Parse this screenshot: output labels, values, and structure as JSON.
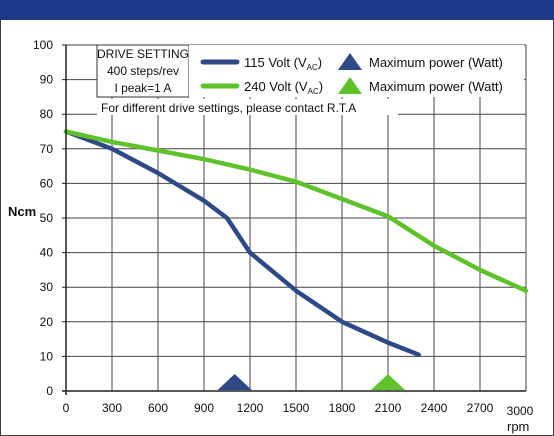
{
  "chart_data": {
    "type": "line",
    "title": "",
    "xlabel": "rpm",
    "ylabel": "Ncm",
    "xlim": [
      0,
      3000
    ],
    "ylim": [
      0,
      100
    ],
    "x_ticks": [
      0,
      300,
      600,
      900,
      1200,
      1500,
      1800,
      2100,
      2400,
      2700,
      3000
    ],
    "y_ticks": [
      0,
      10,
      20,
      30,
      40,
      50,
      60,
      70,
      80,
      90,
      100
    ],
    "grid": true,
    "legend_position": "top-right",
    "series": [
      {
        "name": "115 Volt (V",
        "name_sub": "AC",
        "name_end": ")",
        "color": "#2e4a86",
        "x": [
          0,
          300,
          600,
          900,
          1050,
          1200,
          1500,
          1800,
          2100,
          2300
        ],
        "y": [
          75,
          70,
          63,
          55,
          50,
          40,
          29,
          20,
          14,
          10.5
        ],
        "max_power_label": "Maximum power (Watt)",
        "max_power_rpm": 1100
      },
      {
        "name": "240 Volt (V",
        "name_sub": "AC",
        "name_end": ")",
        "color": "#5fc22a",
        "x": [
          0,
          300,
          600,
          900,
          1200,
          1500,
          1800,
          2100,
          2400,
          2700,
          3000
        ],
        "y": [
          75,
          72,
          69.5,
          67,
          64,
          60.5,
          55.5,
          50.5,
          42,
          35,
          29
        ],
        "max_power_label": "Maximum power (Watt)",
        "max_power_rpm": 2100
      }
    ],
    "drive_setting": {
      "title": "DRIVE SETTING",
      "steps": "400 steps/rev",
      "current": "I peak=1 A"
    },
    "note": "For different drive settings, please contact R.T.A"
  }
}
